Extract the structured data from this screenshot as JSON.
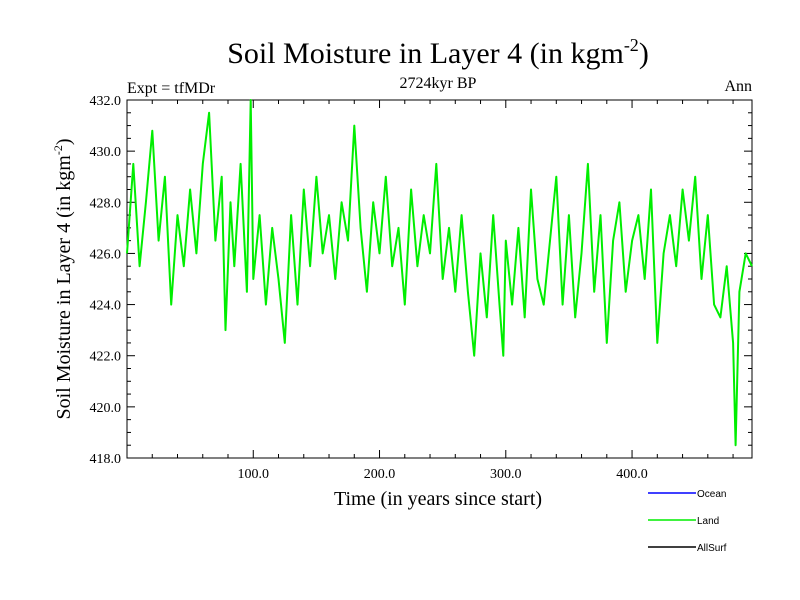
{
  "chart_data": {
    "type": "line",
    "title": "Soil Moisture in Layer 4 (in kgm",
    "title_sup": "-2",
    "title_close": ")",
    "subtitle_left": "Expt = tfMDr",
    "subtitle_center": "2724kyr BP",
    "subtitle_right": "Ann",
    "xlabel": "Time (in years since start)",
    "ylabel": "Soil Moisture in Layer 4 (in kgm",
    "ylabel_sup": "-2",
    "ylabel_close": ")",
    "xlim": [
      0,
      495
    ],
    "ylim": [
      418.0,
      432.0
    ],
    "x_ticks": [
      100,
      200,
      300,
      400
    ],
    "x_tick_labels": [
      "100.0",
      "200.0",
      "300.0",
      "400.0"
    ],
    "y_ticks": [
      418,
      420,
      422,
      424,
      426,
      428,
      430,
      432
    ],
    "y_tick_labels": [
      "418.0",
      "420.0",
      "422.0",
      "424.0",
      "426.0",
      "428.0",
      "430.0",
      "432.0"
    ],
    "legend": [
      {
        "name": "Ocean",
        "color": "#0000ff"
      },
      {
        "name": "Land",
        "color": "#00ee00"
      },
      {
        "name": "AllSurf",
        "color": "#000000"
      }
    ],
    "legend_position": "bottom-right",
    "series": [
      {
        "name": "Land",
        "color": "#00ee00",
        "x": [
          0,
          5,
          10,
          15,
          20,
          25,
          30,
          35,
          40,
          45,
          50,
          55,
          60,
          65,
          70,
          75,
          78,
          82,
          85,
          90,
          95,
          98,
          100,
          105,
          110,
          115,
          120,
          125,
          130,
          135,
          140,
          145,
          150,
          155,
          160,
          165,
          170,
          175,
          180,
          185,
          190,
          195,
          200,
          205,
          210,
          215,
          220,
          225,
          230,
          235,
          240,
          245,
          250,
          255,
          260,
          265,
          270,
          275,
          280,
          285,
          290,
          295,
          298,
          300,
          305,
          310,
          315,
          320,
          325,
          330,
          335,
          340,
          345,
          350,
          355,
          360,
          365,
          370,
          375,
          380,
          385,
          390,
          395,
          400,
          405,
          410,
          415,
          420,
          425,
          430,
          435,
          440,
          445,
          450,
          455,
          460,
          465,
          470,
          475,
          480,
          482,
          485,
          490,
          495
        ],
        "values": [
          426.0,
          429.5,
          425.5,
          428.0,
          430.8,
          426.5,
          429.0,
          424.0,
          427.5,
          425.5,
          428.5,
          426.0,
          429.5,
          431.5,
          426.5,
          429.0,
          423.0,
          428.0,
          425.5,
          429.5,
          424.5,
          432.0,
          425.0,
          427.5,
          424.0,
          427.0,
          425.0,
          422.5,
          427.5,
          424.0,
          428.5,
          425.5,
          429.0,
          426.0,
          427.5,
          425.0,
          428.0,
          426.5,
          431.0,
          427.0,
          424.5,
          428.0,
          426.0,
          429.0,
          425.5,
          427.0,
          424.0,
          428.5,
          425.5,
          427.5,
          426.0,
          429.5,
          425.0,
          427.0,
          424.5,
          427.5,
          424.5,
          422.0,
          426.0,
          423.5,
          427.5,
          424.0,
          422.0,
          426.5,
          424.0,
          427.0,
          423.5,
          428.5,
          425.0,
          424.0,
          426.5,
          429.0,
          424.0,
          427.5,
          423.5,
          426.0,
          429.5,
          424.5,
          427.5,
          422.5,
          426.5,
          428.0,
          424.5,
          426.5,
          427.5,
          425.0,
          428.5,
          422.5,
          426.0,
          427.5,
          425.5,
          428.5,
          426.5,
          429.0,
          425.0,
          427.5,
          424.0,
          423.5,
          425.5,
          422.5,
          418.5,
          424.5,
          426.0,
          425.5
        ]
      }
    ]
  }
}
